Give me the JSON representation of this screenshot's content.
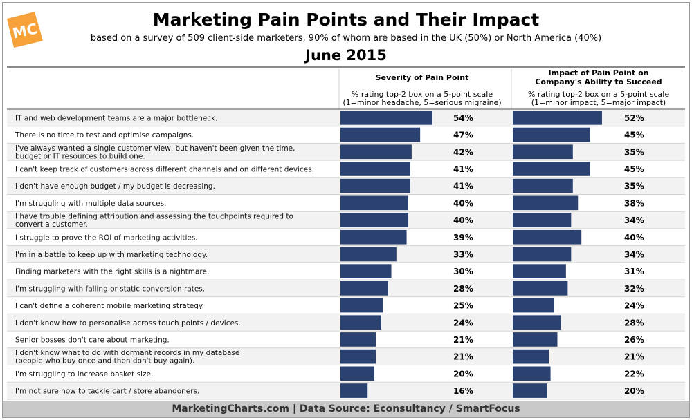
{
  "brand": {
    "logo_text": "MC",
    "logo_color": "#f6a13a",
    "bar_color": "#2b4270"
  },
  "header": {
    "title": "Marketing Pain Points and Their Impact",
    "subtitle": "based on a survey of 509 client-side marketers, 90% of whom are based in the UK (50%) or North America (40%)",
    "date": "June 2015"
  },
  "columns": {
    "severity": {
      "title": "Severity of Pain Point",
      "note_line1": "% rating top-2 box on a 5-point scale",
      "note_line2": "(1=minor headache, 5=serious migraine)"
    },
    "impact": {
      "title_line1": "Impact of Pain Point on",
      "title_line2": "Company's Ability to Succeed",
      "note_line1": "% rating top-2 box on a 5-point scale",
      "note_line2": "(1=minor impact, 5=major impact)"
    }
  },
  "footer": {
    "text": "MarketingCharts.com | Data Source: Econsultancy / SmartFocus"
  },
  "chart_data": {
    "type": "bar",
    "orientation": "horizontal",
    "value_unit": "%",
    "grid": false,
    "categories": [
      [
        "IT and web development teams are a major bottleneck."
      ],
      [
        "There is no time to test and optimise campaigns."
      ],
      [
        "I've always wanted a single customer view, but haven't been given the time,",
        "budget or IT resources to build one."
      ],
      [
        "I can't keep track of customers across different channels and on different devices."
      ],
      [
        "I don't have enough budget / my budget is decreasing."
      ],
      [
        "I'm struggling with multiple data sources."
      ],
      [
        "I have trouble defining attribution and assessing the touchpoints required to",
        "convert a customer."
      ],
      [
        "I struggle to prove the ROI of marketing activities."
      ],
      [
        "I'm in a battle to keep up with marketing technology."
      ],
      [
        "Finding marketers with the right skills is a nightmare."
      ],
      [
        "I'm struggling with falling or static conversion rates."
      ],
      [
        "I can't define a coherent mobile marketing strategy."
      ],
      [
        "I don't know how to personalise across touch points / devices."
      ],
      [
        "Senior bosses don't care about marketing."
      ],
      [
        "I don't know what to do with dormant records in my database",
        "(people who buy once and then don't buy again)."
      ],
      [
        "I'm struggling to increase basket size."
      ],
      [
        "I'm not sure how to tackle cart / store abandoners."
      ]
    ],
    "series": [
      {
        "name": "Severity of Pain Point",
        "values": [
          54,
          47,
          42,
          41,
          41,
          40,
          40,
          39,
          33,
          30,
          28,
          25,
          24,
          21,
          21,
          20,
          16
        ],
        "labels": [
          "54%",
          "47%",
          "42%",
          "41%",
          "41%",
          "40%",
          "40%",
          "39%",
          "33%",
          "30%",
          "28%",
          "25%",
          "24%",
          "21%",
          "21%",
          "20%",
          "16%"
        ]
      },
      {
        "name": "Impact of Pain Point on Company's Ability to Succeed",
        "values": [
          52,
          45,
          35,
          45,
          35,
          38,
          34,
          40,
          34,
          31,
          32,
          24,
          28,
          26,
          21,
          22,
          20
        ],
        "labels": [
          "52%",
          "45%",
          "35%",
          "45%",
          "35%",
          "38%",
          "34%",
          "40%",
          "34%",
          "31%",
          "32%",
          "24%",
          "28%",
          "26%",
          "21%",
          "22%",
          "20%"
        ]
      }
    ],
    "xlim": [
      0,
      100
    ]
  }
}
